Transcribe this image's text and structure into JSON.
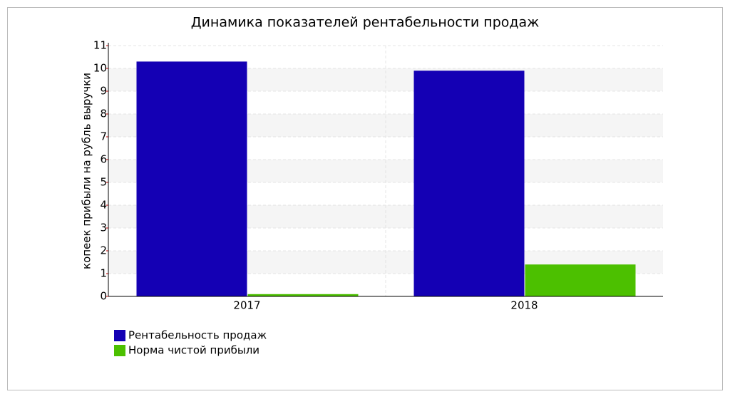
{
  "chart_data": {
    "type": "bar",
    "title": "Динамика показателей рентабельности продаж",
    "y_label": "копеек прибыли на рубль выручки",
    "categories": [
      "2017",
      "2018"
    ],
    "series": [
      {
        "name": "Рентабельность продаж",
        "color": "#1400b4",
        "values": [
          10.3,
          9.9
        ]
      },
      {
        "name": "Норма чистой прибыли",
        "color": "#4cc000",
        "values": [
          0.1,
          1.4
        ]
      }
    ],
    "ylim": [
      0,
      11
    ],
    "yticks": [
      0,
      1,
      2,
      3,
      4,
      5,
      6,
      7,
      8,
      9,
      10,
      11
    ],
    "grid": true
  }
}
